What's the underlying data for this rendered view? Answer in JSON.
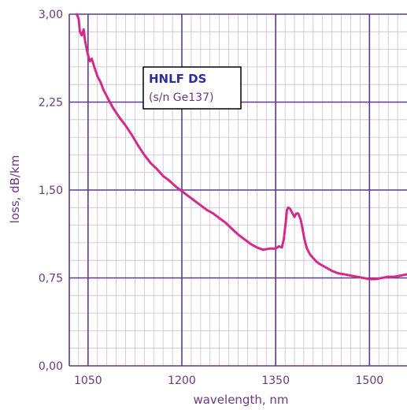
{
  "chart_data": {
    "type": "line",
    "title": "",
    "xlabel": "wavelength, nm",
    "ylabel": "loss, dB/km",
    "xlim": [
      1020,
      1560
    ],
    "ylim": [
      0,
      3
    ],
    "x_ticks": [
      {
        "value": 1050,
        "label": "1050"
      },
      {
        "value": 1200,
        "label": "1200"
      },
      {
        "value": 1350,
        "label": "1350"
      },
      {
        "value": 1500,
        "label": "1500"
      }
    ],
    "y_ticks": [
      {
        "value": 0,
        "label": "0,00"
      },
      {
        "value": 0.75,
        "label": "0,75"
      },
      {
        "value": 1.5,
        "label": "1,50"
      },
      {
        "value": 2.25,
        "label": "2,25"
      },
      {
        "value": 3,
        "label": "3,00"
      }
    ],
    "grid": true,
    "annotation": {
      "title": "HNLF DS",
      "subtitle": "(s/n Ge137)"
    },
    "series": [
      {
        "color": "#d42a8c",
        "x": [
          1032,
          1035,
          1037,
          1040,
          1043,
          1045,
          1048,
          1050,
          1053,
          1056,
          1060,
          1065,
          1070,
          1075,
          1080,
          1085,
          1090,
          1100,
          1110,
          1120,
          1130,
          1140,
          1150,
          1160,
          1170,
          1180,
          1190,
          1200,
          1210,
          1220,
          1230,
          1240,
          1250,
          1260,
          1270,
          1280,
          1290,
          1300,
          1310,
          1320,
          1330,
          1340,
          1350,
          1355,
          1360,
          1363,
          1366,
          1368,
          1370,
          1373,
          1376,
          1380,
          1383,
          1386,
          1390,
          1393,
          1396,
          1400,
          1405,
          1410,
          1415,
          1420,
          1430,
          1440,
          1450,
          1460,
          1470,
          1480,
          1490,
          1500,
          1510,
          1520,
          1530,
          1540,
          1550,
          1560
        ],
        "y": [
          3.0,
          2.96,
          2.85,
          2.82,
          2.87,
          2.78,
          2.7,
          2.65,
          2.6,
          2.62,
          2.55,
          2.47,
          2.42,
          2.35,
          2.3,
          2.25,
          2.2,
          2.12,
          2.05,
          1.97,
          1.88,
          1.8,
          1.73,
          1.68,
          1.62,
          1.58,
          1.53,
          1.49,
          1.45,
          1.41,
          1.37,
          1.33,
          1.3,
          1.26,
          1.22,
          1.17,
          1.12,
          1.08,
          1.04,
          1.01,
          0.99,
          1.0,
          1.0,
          1.02,
          1.01,
          1.08,
          1.22,
          1.33,
          1.35,
          1.34,
          1.31,
          1.27,
          1.3,
          1.3,
          1.25,
          1.17,
          1.08,
          1.0,
          0.95,
          0.92,
          0.89,
          0.87,
          0.84,
          0.81,
          0.79,
          0.78,
          0.77,
          0.76,
          0.75,
          0.74,
          0.74,
          0.75,
          0.76,
          0.76,
          0.77,
          0.78
        ]
      }
    ]
  }
}
